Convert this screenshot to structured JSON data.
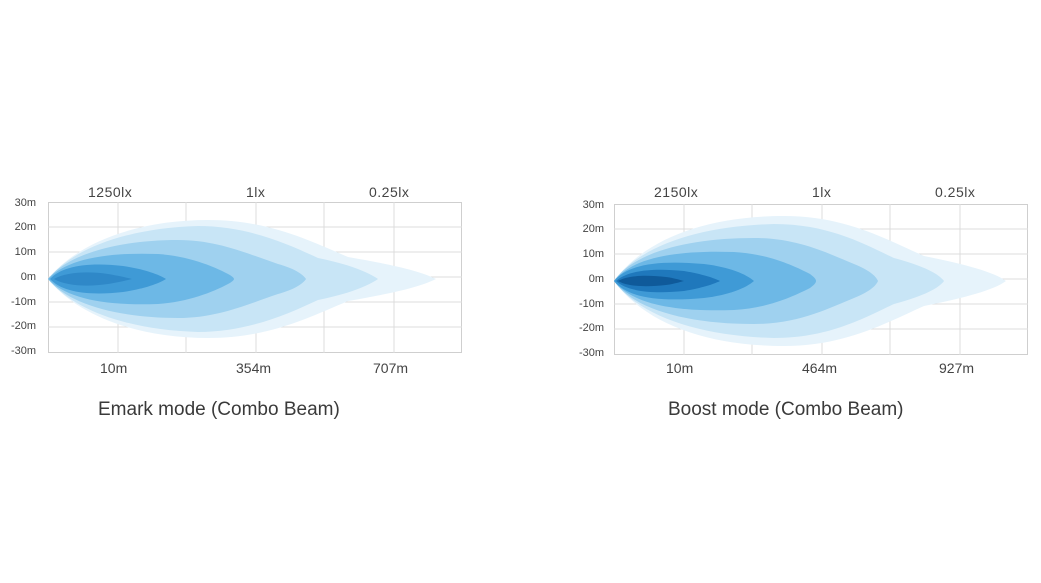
{
  "charts": [
    {
      "id": "emark",
      "caption": "Emark mode (Combo Beam)",
      "lux_labels": [
        "1250lx",
        "1lx",
        "0.25lx"
      ],
      "y_ticks": [
        "30m",
        "20m",
        "10m",
        "0m",
        "-10m",
        "-20m",
        "-30m"
      ],
      "x_ticks": [
        "10m",
        "354m",
        "707m"
      ]
    },
    {
      "id": "boost",
      "caption": "Boost mode (Combo Beam)",
      "lux_labels": [
        "2150lx",
        "1lx",
        "0.25lx"
      ],
      "y_ticks": [
        "30m",
        "20m",
        "10m",
        "0m",
        "-10m",
        "-20m",
        "-30m"
      ],
      "x_ticks": [
        "10m",
        "464m",
        "927m"
      ]
    }
  ],
  "chart_data": [
    {
      "type": "heatmap",
      "title": "Emark mode (Combo Beam)",
      "y_range_m": [
        -30,
        30
      ],
      "x_ticks_m": [
        10,
        354,
        707
      ],
      "isolux_labels": [
        "1250lx",
        "1lx",
        "0.25lx"
      ],
      "grid": true,
      "colors": [
        "#e6f3fb",
        "#c8e5f6",
        "#9fd1ef",
        "#6db8e6",
        "#3f9ad6",
        "#1f78bc"
      ]
    },
    {
      "type": "heatmap",
      "title": "Boost mode (Combo Beam)",
      "y_range_m": [
        -30,
        30
      ],
      "x_ticks_m": [
        10,
        464,
        927
      ],
      "isolux_labels": [
        "2150lx",
        "1lx",
        "0.25lx"
      ],
      "grid": true,
      "colors": [
        "#e6f3fb",
        "#c8e5f6",
        "#9fd1ef",
        "#6db8e6",
        "#3f9ad6",
        "#1f78bc",
        "#0f5a9a"
      ]
    }
  ]
}
